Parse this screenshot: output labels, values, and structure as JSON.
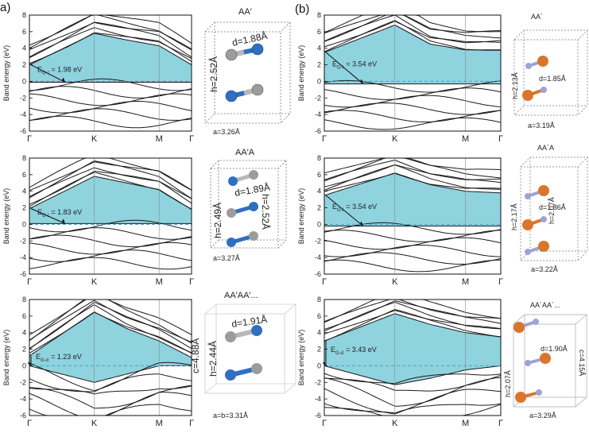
{
  "figure": {
    "panels": [
      {
        "label": "a)"
      },
      {
        "label": "(b)"
      }
    ],
    "colors": {
      "gap_fill": "#8fd3df",
      "band_line": "#1a1a1a",
      "dash": "#4aa3c7",
      "nitrogen_blue": "#2f6fc0",
      "boron_gray": "#b8b8b8",
      "phosphorus_orange": "#d9762b",
      "light_purple": "#9ea3d6"
    }
  },
  "chart_data": [
    {
      "id": "a1",
      "type": "line",
      "ylabel": "Band energy (eV)",
      "ylim": [
        -6,
        8
      ],
      "yticks": [
        -6,
        -4,
        -2,
        0,
        2,
        4,
        6,
        8
      ],
      "kpoints": [
        "Γ",
        "K",
        "M",
        "Γ"
      ],
      "gap_label": "E",
      "gap_sub": "G-I",
      "gap_value": "= 1.98 eV",
      "fill_top": [
        [
          0,
          2.0
        ],
        [
          1,
          5.8
        ],
        [
          1.5,
          5.0
        ],
        [
          2,
          4.3
        ],
        [
          2.5,
          2.0
        ]
      ],
      "fill_bottom": [
        [
          0,
          -0.1
        ],
        [
          1,
          -0.1
        ],
        [
          2,
          -0.1
        ],
        [
          2.5,
          -0.1
        ]
      ]
    },
    {
      "id": "a2",
      "type": "line",
      "ylabel": "Band energy (eV)",
      "ylim": [
        -6,
        8
      ],
      "yticks": [
        -6,
        -4,
        -2,
        0,
        2,
        4,
        6,
        8
      ],
      "kpoints": [
        "Γ",
        "K",
        "M",
        "Γ"
      ],
      "gap_label": "E",
      "gap_sub": "G-I",
      "gap_value": "= 1.83 eV",
      "fill_top": [
        [
          0,
          1.9
        ],
        [
          1,
          5.8
        ],
        [
          1.5,
          5.0
        ],
        [
          2,
          4.2
        ],
        [
          2.5,
          1.8
        ]
      ],
      "fill_bottom": [
        [
          0,
          0.1
        ],
        [
          1,
          0.1
        ],
        [
          2,
          0.1
        ],
        [
          2.5,
          0.1
        ]
      ]
    },
    {
      "id": "a3",
      "type": "line",
      "ylabel": "Band energy (eV)",
      "ylim": [
        -6,
        8
      ],
      "yticks": [
        -6,
        -4,
        -2,
        0,
        2,
        4,
        6,
        8
      ],
      "kpoints": [
        "Γ",
        "K",
        "M",
        "Γ"
      ],
      "gap_label": "E",
      "gap_sub": "G-d",
      "gap_value": "= 1.23 eV",
      "fill_top": [
        [
          0,
          1.2
        ],
        [
          1,
          6.5
        ],
        [
          1.5,
          4.5
        ],
        [
          2,
          3.0
        ],
        [
          2.5,
          1.0
        ]
      ],
      "fill_bottom": [
        [
          0,
          0
        ],
        [
          1,
          -2.0
        ],
        [
          1.5,
          -1.0
        ],
        [
          2,
          0
        ],
        [
          2.5,
          0
        ]
      ]
    },
    {
      "id": "b1",
      "type": "line",
      "ylabel": "Band energy (eV)",
      "ylim": [
        -6,
        8
      ],
      "yticks": [
        -6,
        -4,
        -2,
        0,
        2,
        4,
        6,
        8
      ],
      "kpoints": [
        "Γ",
        "K",
        "M",
        "Γ"
      ],
      "gap_label": "E",
      "gap_sub": "G-I",
      "gap_value": "= 3.54 eV",
      "fill_top": [
        [
          0,
          3.5
        ],
        [
          1,
          6.8
        ],
        [
          1.5,
          4.5
        ],
        [
          2,
          3.8
        ],
        [
          2.5,
          3.8
        ]
      ],
      "fill_bottom": [
        [
          0,
          -0.3
        ],
        [
          1,
          -0.3
        ],
        [
          2,
          -0.3
        ],
        [
          2.5,
          -0.3
        ]
      ]
    },
    {
      "id": "b2",
      "type": "line",
      "ylabel": "Band energy (eV)",
      "ylim": [
        -6,
        8
      ],
      "yticks": [
        -6,
        -4,
        -2,
        0,
        2,
        4,
        6,
        8
      ],
      "kpoints": [
        "Γ",
        "K",
        "M",
        "Γ"
      ],
      "gap_label": "E",
      "gap_sub": "G-I",
      "gap_value": "= 3.54 eV",
      "fill_top": [
        [
          0,
          3.5
        ],
        [
          1,
          6.2
        ],
        [
          1.5,
          4.8
        ],
        [
          2,
          4.0
        ],
        [
          2.5,
          3.8
        ]
      ],
      "fill_bottom": [
        [
          0,
          -0.2
        ],
        [
          1,
          -0.2
        ],
        [
          2,
          -0.2
        ],
        [
          2.5,
          -0.2
        ]
      ]
    },
    {
      "id": "b3",
      "type": "line",
      "ylabel": "Band energy (eV)",
      "ylim": [
        -6,
        8
      ],
      "yticks": [
        -6,
        -4,
        -2,
        0,
        2,
        4,
        6,
        8
      ],
      "kpoints": [
        "Γ",
        "K",
        "M",
        "Γ"
      ],
      "gap_label": "E",
      "gap_sub": "G-d",
      "gap_value": "= 3.43 eV",
      "fill_top": [
        [
          0,
          3.0
        ],
        [
          1,
          6.3
        ],
        [
          1.5,
          5.0
        ],
        [
          2,
          4.0
        ],
        [
          2.5,
          3.5
        ]
      ],
      "fill_bottom": [
        [
          0,
          0
        ],
        [
          1,
          -2.3
        ],
        [
          1.5,
          -1.5
        ],
        [
          2,
          -0.5
        ],
        [
          2.5,
          0
        ]
      ]
    }
  ],
  "structures": {
    "a1": {
      "title": "AA′",
      "d": "d=1.88Å",
      "h": "h=2.52Å",
      "a": "a=3.26Å"
    },
    "a2": {
      "title": "AA′A",
      "d": "d=1.89Å",
      "h1": "h=2.49Å",
      "h2": "h=2.52Å",
      "a": "a=3.27Å"
    },
    "a3": {
      "title": "AA′AA′...",
      "d": "d=1.91Å",
      "h": "h=2.44Å",
      "c": "c=4.88Å",
      "a": "a=b=3.31Å"
    },
    "b1": {
      "title": "AA´",
      "d": "d=1.85Å",
      "h": "h=2.13Å",
      "a": "a=3.19Å"
    },
    "b2": {
      "title": "AA´A",
      "d": "d=1.86Å",
      "h1": "h=2.17Å",
      "h2": "h=2.07Å",
      "a": "a=3.22Å"
    },
    "b3": {
      "title": "AA´AA´...",
      "d": "d=1.90Å",
      "h": "h=2.07Å",
      "c": "c=4.15Å",
      "a": "a=3.29Å"
    }
  }
}
